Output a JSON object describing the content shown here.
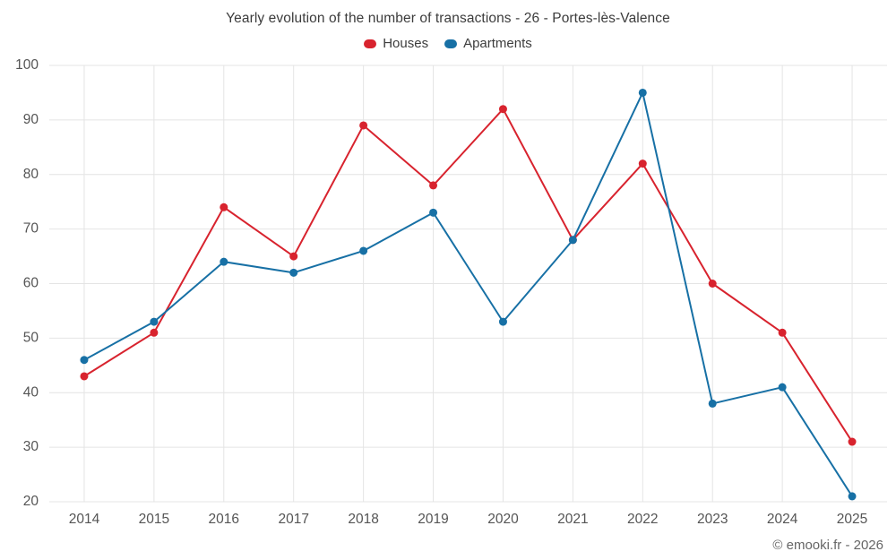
{
  "title": "Yearly evolution of the number of transactions - 26 - Portes-lès-Valence",
  "footer": "© emooki.fr - 2026",
  "chart_data": {
    "type": "line",
    "title": "Yearly evolution of the number of transactions - 26 - Portes-lès-Valence",
    "categories": [
      "2014",
      "2015",
      "2016",
      "2017",
      "2018",
      "2019",
      "2020",
      "2021",
      "2022",
      "2023",
      "2024",
      "2025"
    ],
    "series": [
      {
        "name": "Houses",
        "color": "#d8232e",
        "values": [
          43,
          51,
          74,
          65,
          89,
          78,
          92,
          68,
          82,
          60,
          51,
          31
        ]
      },
      {
        "name": "Apartments",
        "color": "#1770a5",
        "values": [
          46,
          53,
          64,
          62,
          66,
          73,
          53,
          68,
          95,
          38,
          41,
          21
        ]
      }
    ],
    "xlabel": "",
    "ylabel": "",
    "ylim": [
      20,
      100
    ],
    "ytick_step": 10,
    "grid": true,
    "grid_color": "#e4e4e4",
    "tick_label_color": "#555555",
    "legend_position": "top"
  }
}
